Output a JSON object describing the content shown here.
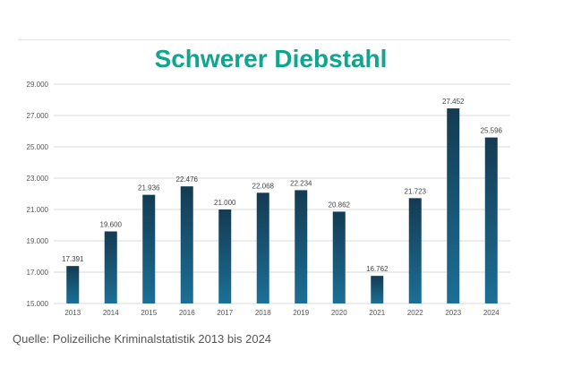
{
  "chart_data": {
    "type": "bar",
    "title": "Schwerer Diebstahl",
    "xlabel": "",
    "ylabel": "",
    "categories": [
      "2013",
      "2014",
      "2015",
      "2016",
      "2017",
      "2018",
      "2019",
      "2020",
      "2021",
      "2022",
      "2023",
      "2024"
    ],
    "values": [
      17391,
      19600,
      21936,
      22476,
      21000,
      22068,
      22234,
      20862,
      16762,
      21723,
      27452,
      25596
    ],
    "value_labels": [
      "17.391",
      "19.600",
      "21.936",
      "22.476",
      "21.000",
      "22.068",
      "22.234",
      "20.862",
      "16.762",
      "21.723",
      "27.452",
      "25.596"
    ],
    "ylim": [
      15000,
      29000
    ],
    "yticks": [
      15000,
      17000,
      19000,
      21000,
      23000,
      25000,
      27000,
      29000
    ],
    "ytick_labels": [
      "15.000",
      "17.000",
      "19.000",
      "21.000",
      "23.000",
      "25.000",
      "27.000",
      "29.000"
    ],
    "grid": true,
    "legend": "none",
    "colors": {
      "bar_top": "#143b52",
      "bar_bottom": "#1c6f96",
      "title": "#10a58f",
      "grid": "#d9d9d9"
    }
  },
  "source_note": "Quelle: Polizeiliche Kriminalstatistik 2013 bis 2024"
}
